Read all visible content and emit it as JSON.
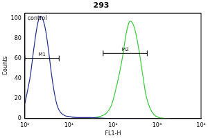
{
  "chart_data": {
    "type": "line",
    "title": "293",
    "x_label": "FL1-H",
    "y_label": "Counts",
    "log": "x",
    "xlim": [
      1,
      10000
    ],
    "xticks": [
      {
        "value": 1,
        "label": "10⁰"
      },
      {
        "value": 10,
        "label": "10¹"
      },
      {
        "value": 100,
        "label": "10²"
      },
      {
        "value": 1000,
        "label": "10³"
      },
      {
        "value": 10000,
        "label": "10⁴"
      }
    ],
    "ylim": [
      0,
      105
    ],
    "yticks": [
      0,
      20,
      40,
      60,
      80,
      100
    ],
    "grid": false,
    "series": [
      {
        "color": "#1f2a8a",
        "x": [
          1,
          1.3,
          1.6,
          1.9,
          2.2,
          2.5,
          2.9,
          3.4,
          4,
          4.7,
          5.5,
          6.5,
          8,
          10,
          15,
          30,
          100,
          1000
        ],
        "values": [
          15,
          40,
          70,
          92,
          102,
          100,
          90,
          70,
          45,
          25,
          12,
          6,
          3,
          2,
          1,
          1,
          0,
          0
        ]
      },
      {
        "color": "#33cc33",
        "x": [
          30,
          50,
          70,
          90,
          110,
          140,
          170,
          200,
          240,
          280,
          330,
          400,
          480,
          570,
          700,
          850,
          1100,
          2000
        ],
        "values": [
          0,
          2,
          5,
          12,
          25,
          45,
          65,
          85,
          97,
          95,
          85,
          65,
          42,
          22,
          10,
          4,
          1,
          0
        ]
      }
    ],
    "annotations": [
      {
        "text": "control",
        "x": 1.15,
        "y": 97
      }
    ],
    "gates": [
      {
        "label": "M1",
        "x": [
          1,
          6
        ],
        "y": 60
      },
      {
        "label": "M2",
        "x": [
          60,
          600
        ],
        "y": 65
      }
    ]
  }
}
